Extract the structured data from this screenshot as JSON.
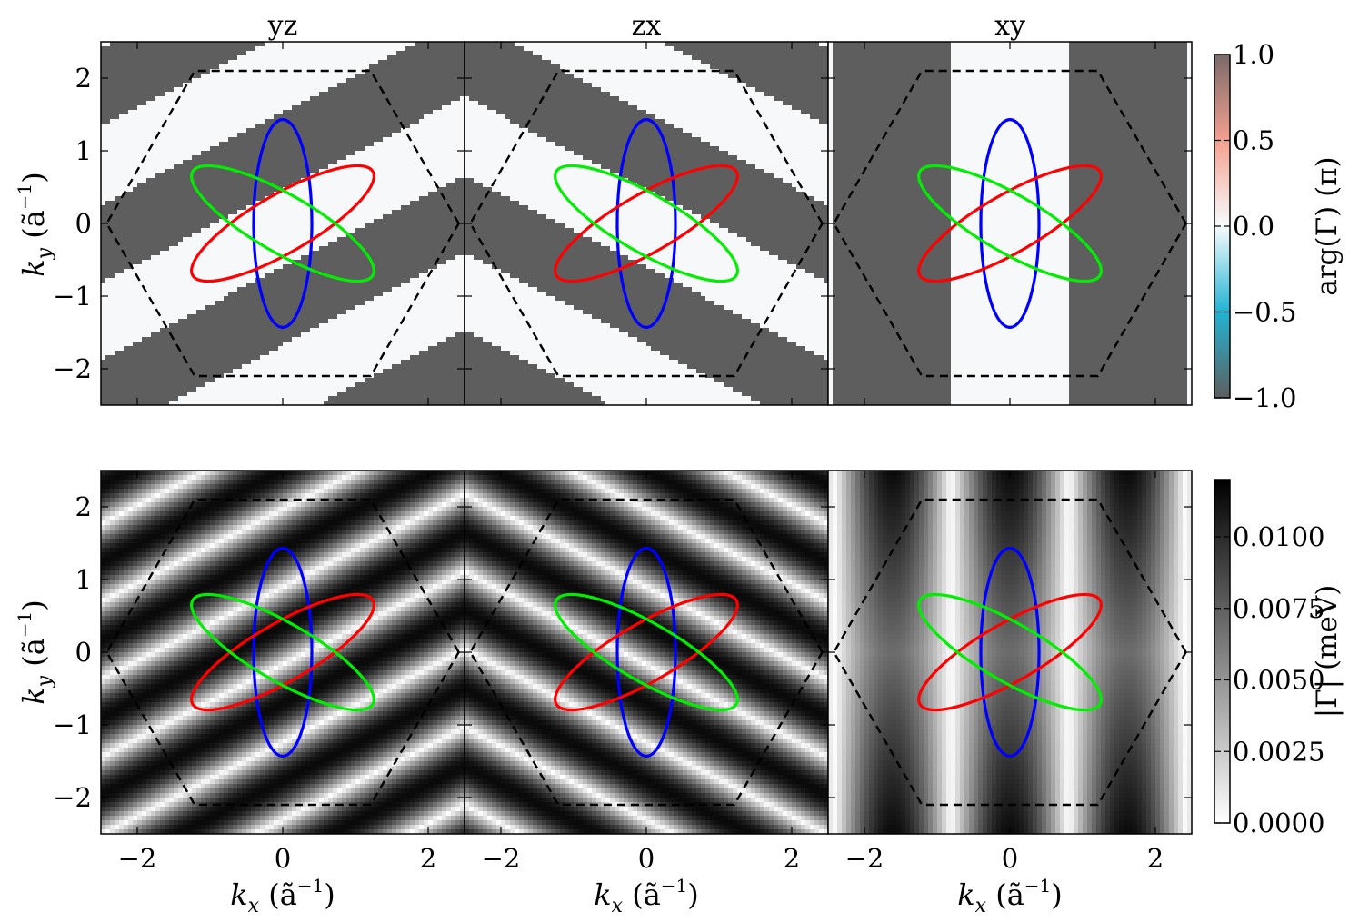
{
  "chart_data": [
    {
      "type": "heatmap",
      "panel": "phase",
      "column_titles": [
        "yz",
        "zx",
        "xy"
      ],
      "xlim": [
        -2.5,
        2.5
      ],
      "ylim": [
        -2.5,
        2.5
      ],
      "xticks": [
        -2,
        0,
        2
      ],
      "yticks": [
        -2,
        -1,
        0,
        1,
        2
      ],
      "ytick_labels": [
        "−2",
        "−1",
        "0",
        "1",
        "2"
      ],
      "ylabel": {
        "main": "k",
        "sub": "y",
        "unit": " (ã",
        "exp": "−1",
        "close": ")"
      },
      "xlabel": null,
      "field_description_values": {
        "yz": {
          "stripe_direction_deg": 27,
          "high_value": 0.0,
          "low_value": -1.0
        },
        "zx": {
          "stripe_direction_deg": -27,
          "high_value": 0.0,
          "low_value": -1.0
        },
        "xy": {
          "stripe_direction_deg": 90,
          "high_value": 0.0,
          "low_value": -1.0
        }
      },
      "colorbar": {
        "label": "arg(Γ) (π)",
        "range": [
          -1.0,
          1.0
        ],
        "ticks": [
          -1.0,
          -0.5,
          0.0,
          0.5,
          1.0
        ],
        "tick_labels": [
          "−1.0",
          "−0.5",
          "0.0",
          "0.5",
          "1.0"
        ],
        "colors": [
          "#5e5e5e",
          "#22b3d1",
          "#f7fbfd",
          "#f4a08f",
          "#7a6a6a"
        ]
      }
    },
    {
      "type": "heatmap",
      "panel": "magnitude",
      "column_titles": [
        "",
        "",
        ""
      ],
      "xlim": [
        -2.5,
        2.5
      ],
      "ylim": [
        -2.5,
        2.5
      ],
      "xticks": [
        -2,
        0,
        2
      ],
      "xtick_labels": [
        "−2",
        "0",
        "2"
      ],
      "yticks": [
        -2,
        -1,
        0,
        1,
        2
      ],
      "ytick_labels": [
        "−2",
        "−1",
        "0",
        "1",
        "2"
      ],
      "xlabel": {
        "main": "k",
        "sub": "x",
        "unit": " (ã",
        "exp": "−1",
        "close": ")"
      },
      "ylabel": {
        "main": "k",
        "sub": "y",
        "unit": " (ã",
        "exp": "−1",
        "close": ")"
      },
      "colorbar": {
        "label": "|Γ| (meV)",
        "range": [
          0.0,
          0.012
        ],
        "ticks": [
          0.0,
          0.0025,
          0.005,
          0.0075,
          0.01
        ],
        "tick_labels": [
          "0.0000",
          "0.0025",
          "0.0050",
          "0.0075",
          "0.0100"
        ],
        "colors": [
          "#ffffff",
          "#000000"
        ]
      }
    }
  ],
  "overlays": {
    "brillouin_zone_hexagon": {
      "vertices": [
        [
          2.42,
          0
        ],
        [
          1.21,
          2.1
        ],
        [
          -1.21,
          2.1
        ],
        [
          -2.42,
          0
        ],
        [
          -1.21,
          -2.1
        ],
        [
          1.21,
          -2.1
        ]
      ],
      "style": "dashed",
      "color": "#000000"
    },
    "fermi_ellipses": [
      {
        "color": "#0000ff",
        "center": [
          0,
          0
        ],
        "semi_major": 1.43,
        "semi_minor": 0.4,
        "angle_deg": 90
      },
      {
        "color": "#ff0000",
        "center": [
          0,
          0
        ],
        "semi_major": 1.43,
        "semi_minor": 0.4,
        "angle_deg": 30
      },
      {
        "color": "#00ee00",
        "center": [
          0,
          0
        ],
        "semi_major": 1.43,
        "semi_minor": 0.4,
        "angle_deg": -30
      }
    ]
  }
}
